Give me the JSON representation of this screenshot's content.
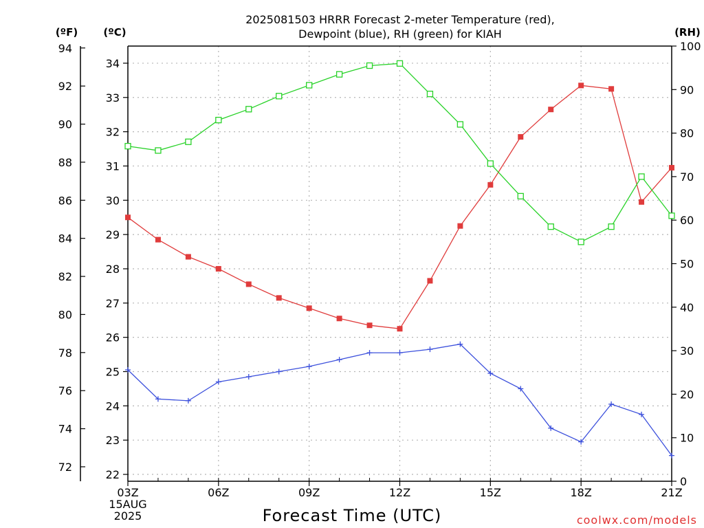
{
  "chart_data": {
    "type": "line",
    "title": [
      "2025081503 HRRR Forecast 2-meter Temperature (red),",
      "Dewpoint (blue), RH (green) for KIAH"
    ],
    "xlabel": "Forecast Time (UTC)",
    "credit": "coolwx.com/models",
    "units": {
      "left_outer": "(ºF)",
      "left_inner": "(ºC)",
      "right": "(RH)"
    },
    "x_hours": [
      3,
      4,
      5,
      6,
      7,
      8,
      9,
      10,
      11,
      12,
      13,
      14,
      15,
      16,
      17,
      18,
      19,
      20,
      21
    ],
    "x_ticks": [
      {
        "hour": 3,
        "lines": [
          "03Z",
          "15AUG",
          "2025"
        ]
      },
      {
        "hour": 6,
        "lines": [
          "06Z"
        ]
      },
      {
        "hour": 9,
        "lines": [
          "09Z"
        ]
      },
      {
        "hour": 12,
        "lines": [
          "12Z"
        ]
      },
      {
        "hour": 15,
        "lines": [
          "15Z"
        ]
      },
      {
        "hour": 18,
        "lines": [
          "18Z"
        ]
      },
      {
        "hour": 21,
        "lines": [
          "21Z"
        ]
      }
    ],
    "y_celsius": {
      "range": [
        21.8,
        34.5
      ],
      "ticks": [
        22,
        23,
        24,
        25,
        26,
        27,
        28,
        29,
        30,
        31,
        32,
        33,
        34
      ]
    },
    "y_fahrenheit": {
      "ticks": [
        72,
        74,
        76,
        78,
        80,
        82,
        84,
        86,
        88,
        90,
        92,
        94
      ]
    },
    "y_rh": {
      "range": [
        0,
        100
      ],
      "ticks": [
        0,
        10,
        20,
        30,
        40,
        50,
        60,
        70,
        80,
        90,
        100
      ]
    },
    "grid": true,
    "series": [
      {
        "name": "2-meter Temperature",
        "color": "#e03c3c",
        "marker": "filled-square",
        "axis": "celsius",
        "values": [
          29.5,
          28.85,
          28.35,
          28.0,
          27.55,
          27.15,
          26.85,
          26.55,
          26.35,
          26.25,
          27.65,
          29.25,
          30.45,
          31.85,
          32.65,
          33.35,
          33.25,
          29.95,
          30.95
        ]
      },
      {
        "name": "Dewpoint",
        "color": "#3c50dc",
        "marker": "plus",
        "axis": "celsius",
        "values": [
          25.05,
          24.2,
          24.15,
          24.7,
          24.85,
          25.0,
          25.15,
          25.35,
          25.55,
          25.55,
          25.65,
          25.8,
          24.95,
          24.5,
          23.35,
          22.95,
          24.05,
          23.75,
          22.55
        ]
      },
      {
        "name": "RH",
        "color": "#28d228",
        "marker": "open-square",
        "axis": "rh",
        "values": [
          77,
          76,
          78,
          83,
          85.5,
          88.5,
          91,
          93.5,
          95.5,
          96,
          89,
          82,
          73,
          65.5,
          58.5,
          55,
          58.5,
          70,
          61
        ]
      }
    ]
  }
}
